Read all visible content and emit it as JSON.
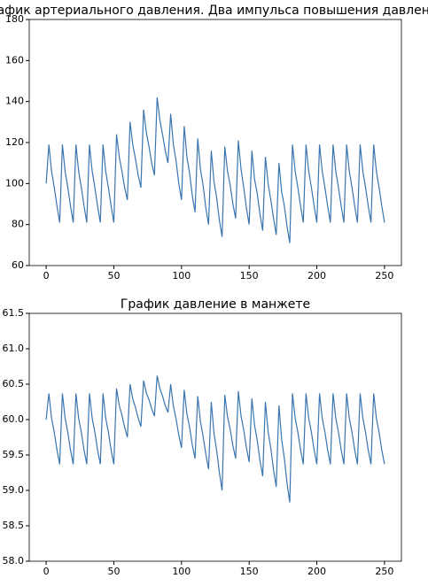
{
  "chart_data": [
    {
      "type": "line",
      "title": "График артериального давления. Два импульса повышения давления.",
      "x": [
        0,
        2,
        4,
        6,
        8,
        10,
        12,
        14,
        16,
        18,
        20,
        22,
        24,
        26,
        28,
        30,
        32,
        34,
        36,
        38,
        40,
        42,
        44,
        46,
        48,
        50,
        52,
        54,
        56,
        58,
        60,
        62,
        64,
        66,
        68,
        70,
        72,
        74,
        76,
        78,
        80,
        82,
        84,
        86,
        88,
        90,
        92,
        94,
        96,
        98,
        100,
        102,
        104,
        106,
        108,
        110,
        112,
        114,
        116,
        118,
        120,
        122,
        124,
        126,
        128,
        130,
        132,
        134,
        136,
        138,
        140,
        142,
        144,
        146,
        148,
        150,
        152,
        154,
        156,
        158,
        160,
        162,
        164,
        166,
        168,
        170,
        172,
        174,
        176,
        178,
        180,
        182,
        184,
        186,
        188,
        190,
        192,
        194,
        196,
        198,
        200,
        202,
        204,
        206,
        208,
        210,
        212,
        214,
        216,
        218,
        220,
        222,
        224,
        226,
        228,
        230,
        232,
        234,
        236,
        238,
        240,
        242,
        244,
        246,
        248,
        250
      ],
      "series": [
        {
          "color": "#3a75af",
          "values": [
            100,
            119,
            106,
            98,
            89,
            81,
            119,
            106,
            98,
            89,
            81,
            119,
            106,
            98,
            89,
            81,
            119,
            106,
            98,
            89,
            81,
            119,
            106,
            98,
            89,
            81,
            124,
            113,
            106,
            98,
            92,
            130,
            119,
            112,
            104,
            98,
            136,
            125,
            118,
            110,
            104,
            142,
            131,
            124,
            116,
            110,
            134,
            119,
            111,
            100,
            92,
            128,
            113,
            105,
            94,
            86,
            122,
            107,
            99,
            88,
            80,
            116,
            101,
            93,
            82,
            74,
            118,
            106,
            99,
            90,
            83,
            121,
            107,
            98,
            88,
            80,
            116,
            102,
            95,
            85,
            77,
            113,
            100,
            92,
            83,
            75,
            110,
            96,
            89,
            79,
            71,
            119,
            106,
            98,
            89,
            81,
            119,
            106,
            98,
            89,
            81,
            119,
            106,
            98,
            89,
            81,
            119,
            106,
            98,
            89,
            81,
            119,
            106,
            98,
            89,
            81,
            119,
            106,
            98,
            89,
            81,
            119,
            106,
            98,
            89,
            81
          ]
        }
      ],
      "xlim": [
        -12.5,
        262.5
      ],
      "xticks": [
        0,
        50,
        100,
        150,
        200,
        250
      ],
      "ylim": [
        60,
        180
      ],
      "yticks": [
        60,
        80,
        100,
        120,
        140,
        160,
        180
      ]
    },
    {
      "type": "line",
      "title": "График давление в манжете",
      "x": [
        0,
        2,
        4,
        6,
        8,
        10,
        12,
        14,
        16,
        18,
        20,
        22,
        24,
        26,
        28,
        30,
        32,
        34,
        36,
        38,
        40,
        42,
        44,
        46,
        48,
        50,
        52,
        54,
        56,
        58,
        60,
        62,
        64,
        66,
        68,
        70,
        72,
        74,
        76,
        78,
        80,
        82,
        84,
        86,
        88,
        90,
        92,
        94,
        96,
        98,
        100,
        102,
        104,
        106,
        108,
        110,
        112,
        114,
        116,
        118,
        120,
        122,
        124,
        126,
        128,
        130,
        132,
        134,
        136,
        138,
        140,
        142,
        144,
        146,
        148,
        150,
        152,
        154,
        156,
        158,
        160,
        162,
        164,
        166,
        168,
        170,
        172,
        174,
        176,
        178,
        180,
        182,
        184,
        186,
        188,
        190,
        192,
        194,
        196,
        198,
        200,
        202,
        204,
        206,
        208,
        210,
        212,
        214,
        216,
        218,
        220,
        222,
        224,
        226,
        228,
        230,
        232,
        234,
        236,
        238,
        240,
        242,
        244,
        246,
        248,
        250
      ],
      "series": [
        {
          "color": "#3a75af",
          "values": [
            60.0,
            60.37,
            60.02,
            59.82,
            59.57,
            59.37,
            60.37,
            60.02,
            59.82,
            59.57,
            59.37,
            60.37,
            60.02,
            59.82,
            59.57,
            59.37,
            60.37,
            60.02,
            59.82,
            59.57,
            59.37,
            60.37,
            60.02,
            59.82,
            59.57,
            59.37,
            60.44,
            60.2,
            60.06,
            59.89,
            59.75,
            60.5,
            60.29,
            60.17,
            60.02,
            59.9,
            60.55,
            60.38,
            60.28,
            60.15,
            60.05,
            60.62,
            60.44,
            60.33,
            60.2,
            60.1,
            60.5,
            60.19,
            60.01,
            59.78,
            59.6,
            60.42,
            60.08,
            59.89,
            59.64,
            59.45,
            60.33,
            59.97,
            59.76,
            59.51,
            59.3,
            60.25,
            59.81,
            59.56,
            59.25,
            59.0,
            60.35,
            60.04,
            59.86,
            59.63,
            59.45,
            60.4,
            60.05,
            59.85,
            59.6,
            59.4,
            60.3,
            59.92,
            59.7,
            59.42,
            59.2,
            60.25,
            59.83,
            59.59,
            59.29,
            59.05,
            60.2,
            59.72,
            59.45,
            59.1,
            58.83,
            60.37,
            60.02,
            59.82,
            59.57,
            59.37,
            60.37,
            60.02,
            59.82,
            59.57,
            59.37,
            60.37,
            60.02,
            59.82,
            59.57,
            59.37,
            60.37,
            60.02,
            59.82,
            59.57,
            59.37,
            60.37,
            60.02,
            59.82,
            59.57,
            59.37,
            60.37,
            60.02,
            59.82,
            59.57,
            59.37,
            60.37,
            60.02,
            59.82,
            59.57,
            59.37
          ]
        }
      ],
      "xlim": [
        -12.5,
        262.5
      ],
      "xticks": [
        0,
        50,
        100,
        150,
        200,
        250
      ],
      "ylim": [
        58,
        61.5
      ],
      "yticks": [
        {
          "value": 58,
          "label": "58.0"
        },
        58.5,
        {
          "value": 59,
          "label": "59.0"
        },
        59.5,
        {
          "value": 60,
          "label": "60.0"
        },
        60.5,
        {
          "value": 61,
          "label": "61.0"
        },
        61.5
      ]
    }
  ]
}
